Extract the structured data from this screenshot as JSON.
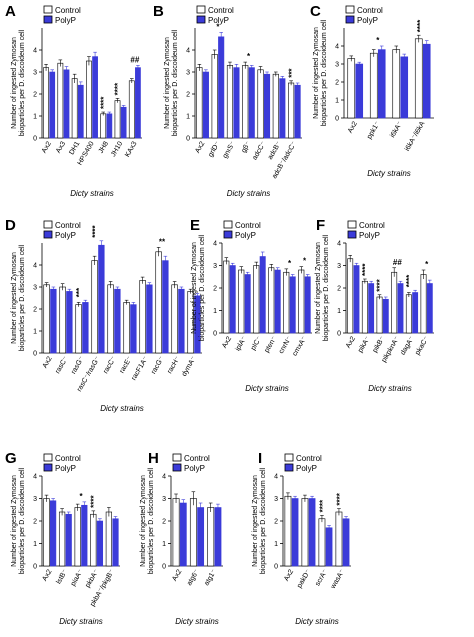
{
  "colors": {
    "control": "#ffffff",
    "polyp": "#3b3bd9",
    "axis": "#000000"
  },
  "legend": {
    "control": "Control",
    "polyp": "PolyP"
  },
  "chart_data": [
    {
      "panel": "A",
      "type": "bar",
      "ylabel": [
        "Number of ingested Zymosan",
        "bioparticles per D. discoideum cell"
      ],
      "xlabel": "Dicty strains",
      "ylim": [
        0,
        5
      ],
      "yticks": [
        0,
        1,
        2,
        3,
        4
      ],
      "categories": [
        "Ax2",
        "Ax3",
        "DH1",
        "HPS400",
        "JH8",
        "JH10",
        "KAx3"
      ],
      "series": [
        {
          "name": "Control",
          "values": [
            3.2,
            3.4,
            2.7,
            3.5,
            1.1,
            1.7,
            2.6
          ],
          "errors": [
            0.15,
            0.15,
            0.2,
            0.2,
            0.08,
            0.1,
            0.1
          ]
        },
        {
          "name": "PolyP",
          "values": [
            3.0,
            3.1,
            2.4,
            3.7,
            1.1,
            1.4,
            3.2
          ],
          "errors": [
            0.1,
            0.15,
            0.15,
            0.2,
            0.08,
            0.08,
            0.1
          ]
        }
      ],
      "annotations": [
        {
          "category": 4,
          "text": "****"
        },
        {
          "category": 5,
          "text": "****"
        },
        {
          "category": 6,
          "text": "##"
        }
      ]
    },
    {
      "panel": "B",
      "type": "bar",
      "ylabel": [
        "Number of ingested Zymosan",
        "bioparticles per D. discoideum cell"
      ],
      "xlabel": "Dicty strains",
      "ylim": [
        0,
        5
      ],
      "yticks": [
        0,
        1,
        2,
        3,
        4
      ],
      "categories": [
        "Ax2",
        "grlD⁻",
        "gnıS⁻",
        "gβ⁻",
        "adcC⁻",
        "adcB⁻",
        "adcB⁻/adcC⁻"
      ],
      "series": [
        {
          "name": "Control",
          "values": [
            3.2,
            3.8,
            3.3,
            3.3,
            3.1,
            2.9,
            2.5
          ],
          "errors": [
            0.15,
            0.2,
            0.15,
            0.15,
            0.15,
            0.1,
            0.1
          ]
        },
        {
          "name": "PolyP",
          "values": [
            3.0,
            4.6,
            3.2,
            3.2,
            2.9,
            2.7,
            2.4
          ],
          "errors": [
            0.1,
            0.2,
            0.15,
            0.1,
            0.1,
            0.1,
            0.1
          ]
        }
      ],
      "annotations": [
        {
          "category": 1,
          "text": "*"
        },
        {
          "category": 3,
          "text": "*"
        },
        {
          "category": 6,
          "text": "***"
        }
      ]
    },
    {
      "panel": "C",
      "type": "bar",
      "ylabel": [
        "Number of ingested Zymosan",
        "bioparticles per D. discoideum cell"
      ],
      "xlabel": "Dicty strains",
      "ylim": [
        0,
        5
      ],
      "yticks": [
        0,
        1,
        2,
        3,
        4
      ],
      "categories": [
        "Ax2",
        "ppk1⁻",
        "i6kA⁻",
        "i6kA⁻/i6kA"
      ],
      "series": [
        {
          "name": "Control",
          "values": [
            3.3,
            3.6,
            3.8,
            4.4
          ],
          "errors": [
            0.15,
            0.2,
            0.2,
            0.2
          ]
        },
        {
          "name": "PolyP",
          "values": [
            3.0,
            3.8,
            3.4,
            4.1
          ],
          "errors": [
            0.1,
            0.2,
            0.15,
            0.2
          ]
        }
      ],
      "annotations": [
        {
          "category": 1,
          "text": "*"
        },
        {
          "category": 3,
          "text": "****"
        }
      ]
    },
    {
      "panel": "D",
      "type": "bar",
      "ylabel": [
        "Number of ingested Zymosan",
        "bioparticles per D. discoideum cell"
      ],
      "xlabel": "Dicty strains",
      "ylim": [
        0,
        5
      ],
      "yticks": [
        0,
        1,
        2,
        3,
        4
      ],
      "categories": [
        "Ax2",
        "rasC⁻",
        "rasG⁻",
        "rasC⁻/rasG⁻",
        "racC⁻",
        "racE⁻",
        "racF1A⁻",
        "racG⁻",
        "racH⁻",
        "dymA⁻"
      ],
      "series": [
        {
          "name": "Control",
          "values": [
            3.1,
            3.0,
            2.2,
            4.2,
            3.1,
            2.3,
            3.3,
            4.6,
            3.1,
            2.8
          ],
          "errors": [
            0.1,
            0.15,
            0.1,
            0.2,
            0.15,
            0.1,
            0.15,
            0.2,
            0.15,
            0.1
          ]
        },
        {
          "name": "PolyP",
          "values": [
            2.9,
            2.8,
            2.3,
            4.9,
            2.9,
            2.2,
            3.1,
            4.2,
            2.9,
            2.6
          ],
          "errors": [
            0.1,
            0.1,
            0.1,
            0.2,
            0.1,
            0.1,
            0.1,
            0.2,
            0.1,
            0.1
          ]
        }
      ],
      "annotations": [
        {
          "category": 2,
          "text": "***"
        },
        {
          "category": 3,
          "text": "****"
        },
        {
          "category": 7,
          "text": "**"
        }
      ]
    },
    {
      "panel": "E",
      "type": "bar",
      "ylabel": [
        "Number of ingested Zymosan",
        "bioparticles per D. discoideum cell"
      ],
      "xlabel": "Dicty strains",
      "ylim": [
        0,
        4
      ],
      "yticks": [
        0,
        1,
        2,
        3,
        4
      ],
      "categories": [
        "Ax2",
        "iplA⁻",
        "pIC⁻",
        "pten⁻",
        "cnrN⁻",
        "cmxA⁻"
      ],
      "series": [
        {
          "name": "Control",
          "values": [
            3.2,
            2.8,
            3.0,
            2.9,
            2.7,
            2.8
          ],
          "errors": [
            0.15,
            0.15,
            0.15,
            0.15,
            0.15,
            0.15
          ]
        },
        {
          "name": "PolyP",
          "values": [
            3.0,
            2.6,
            3.4,
            2.8,
            2.5,
            2.5
          ],
          "errors": [
            0.1,
            0.1,
            0.2,
            0.1,
            0.1,
            0.1
          ]
        }
      ],
      "annotations": [
        {
          "category": 4,
          "text": "*"
        },
        {
          "category": 5,
          "text": "*"
        }
      ]
    },
    {
      "panel": "F",
      "type": "bar",
      "ylabel": [
        "Number of ingested Zymosan",
        "bioparticles per D. discoideum cell"
      ],
      "xlabel": "Dicty strains",
      "ylim": [
        0,
        4
      ],
      "yticks": [
        0,
        1,
        2,
        3,
        4
      ],
      "categories": [
        "Ax2",
        "pikA⁻",
        "pikB⁻",
        "pikpknA⁻",
        "dagA⁻",
        "pkaC⁻"
      ],
      "series": [
        {
          "name": "Control",
          "values": [
            3.3,
            2.3,
            1.6,
            2.7,
            1.7,
            2.6
          ],
          "errors": [
            0.15,
            0.1,
            0.1,
            0.2,
            0.1,
            0.2
          ]
        },
        {
          "name": "PolyP",
          "values": [
            3.0,
            2.2,
            1.5,
            2.2,
            1.8,
            2.2
          ],
          "errors": [
            0.1,
            0.1,
            0.1,
            0.1,
            0.1,
            0.15
          ]
        }
      ],
      "annotations": [
        {
          "category": 1,
          "text": "****"
        },
        {
          "category": 2,
          "text": "****"
        },
        {
          "category": 3,
          "text": "##"
        },
        {
          "category": 4,
          "text": "****"
        },
        {
          "category": 5,
          "text": "*"
        }
      ]
    },
    {
      "panel": "G",
      "type": "bar",
      "ylabel": [
        "Number of ingested Zymosan",
        "bioparticles per D. discoideum cell"
      ],
      "xlabel": "Dicty strains",
      "ylim": [
        0,
        4
      ],
      "yticks": [
        0,
        1,
        2,
        3,
        4
      ],
      "categories": [
        "Ax2",
        "lstB⁻",
        "piaA⁻",
        "pkbA⁻",
        "pkbA⁻/pkgB⁻"
      ],
      "series": [
        {
          "name": "Control",
          "values": [
            3.0,
            2.4,
            2.6,
            2.3,
            2.4
          ],
          "errors": [
            0.15,
            0.15,
            0.15,
            0.15,
            0.2
          ]
        },
        {
          "name": "PolyP",
          "values": [
            2.9,
            2.3,
            2.7,
            2.0,
            2.1
          ],
          "errors": [
            0.1,
            0.1,
            0.15,
            0.1,
            0.1
          ]
        }
      ],
      "annotations": [
        {
          "category": 2,
          "text": "*"
        },
        {
          "category": 3,
          "text": "****"
        }
      ]
    },
    {
      "panel": "H",
      "type": "bar",
      "ylabel": [
        "Number of ingested Zymosan",
        "bioparticles per D. discoideum cell"
      ],
      "xlabel": "Dicty strains",
      "ylim": [
        0,
        4
      ],
      "yticks": [
        0,
        1,
        2,
        3,
        4
      ],
      "categories": [
        "Ax2",
        "atg6⁻",
        "atg1⁻"
      ],
      "series": [
        {
          "name": "Control",
          "values": [
            3.0,
            3.0,
            2.6
          ],
          "errors": [
            0.2,
            0.3,
            0.2
          ]
        },
        {
          "name": "PolyP",
          "values": [
            2.8,
            2.6,
            2.6
          ],
          "errors": [
            0.15,
            0.2,
            0.15
          ]
        }
      ],
      "annotations": []
    },
    {
      "panel": "I",
      "type": "bar",
      "ylabel": [
        "Number of ingested Zymosan",
        "bioparticles per D. discoideum cell"
      ],
      "xlabel": "Dicty strains",
      "ylim": [
        0,
        4
      ],
      "yticks": [
        0,
        1,
        2,
        3,
        4
      ],
      "categories": [
        "Ax2",
        "pakD⁻",
        "scrA⁻",
        "wasA⁻"
      ],
      "series": [
        {
          "name": "Control",
          "values": [
            3.1,
            3.0,
            2.1,
            2.4
          ],
          "errors": [
            0.15,
            0.15,
            0.15,
            0.15
          ]
        },
        {
          "name": "PolyP",
          "values": [
            3.0,
            3.0,
            1.7,
            2.1
          ],
          "errors": [
            0.1,
            0.1,
            0.1,
            0.1
          ]
        }
      ],
      "annotations": [
        {
          "category": 2,
          "text": "****"
        },
        {
          "category": 3,
          "text": "****"
        }
      ]
    }
  ]
}
